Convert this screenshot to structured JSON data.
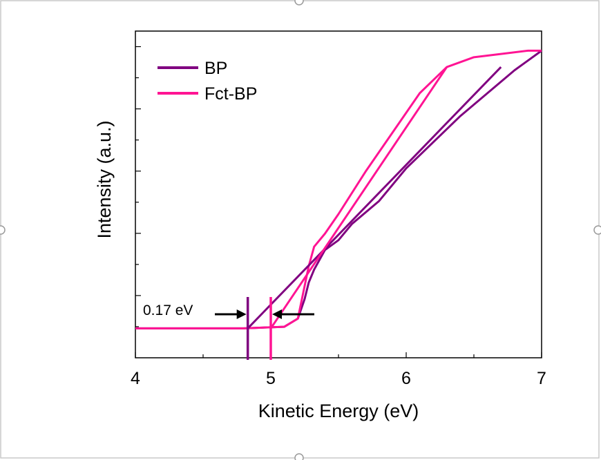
{
  "chart_data": {
    "type": "line",
    "xlabel": "Kinetic Energy (eV)",
    "ylabel": "Intensity (a.u.)",
    "xlim": [
      4,
      7
    ],
    "ylim": [
      0,
      1
    ],
    "x_ticks": [
      "4",
      "5",
      "6",
      "7"
    ],
    "grid": false,
    "legend_position": "top-left",
    "series": [
      {
        "name": "BP",
        "color": "#800080",
        "x": [
          4.0,
          4.8,
          5.1,
          5.2,
          5.25,
          5.28,
          5.32,
          5.4,
          5.5,
          5.6,
          5.8,
          6.0,
          6.2,
          6.4,
          6.6,
          6.8,
          7.0
        ],
        "y": [
          0.09,
          0.09,
          0.095,
          0.12,
          0.18,
          0.23,
          0.27,
          0.33,
          0.36,
          0.41,
          0.48,
          0.58,
          0.66,
          0.74,
          0.81,
          0.88,
          0.94
        ]
      },
      {
        "name": "Fct-BP",
        "color": "#FF1493",
        "x": [
          4.0,
          4.8,
          5.1,
          5.2,
          5.25,
          5.28,
          5.32,
          5.4,
          5.5,
          5.7,
          5.9,
          6.1,
          6.3,
          6.5,
          6.7,
          6.9,
          7.0
        ],
        "y": [
          0.09,
          0.09,
          0.095,
          0.12,
          0.22,
          0.28,
          0.34,
          0.38,
          0.44,
          0.57,
          0.69,
          0.81,
          0.89,
          0.92,
          0.93,
          0.94,
          0.94
        ]
      }
    ],
    "fit_lines": [
      {
        "series": "BP",
        "x": [
          4.83,
          6.7
        ],
        "y": [
          0.09,
          0.89
        ]
      },
      {
        "series": "Fct-BP",
        "x": [
          5.0,
          6.3
        ],
        "y": [
          0.09,
          0.89
        ]
      }
    ],
    "cutoffs": [
      {
        "series": "BP",
        "x": 4.83
      },
      {
        "series": "Fct-BP",
        "x": 5.0
      }
    ],
    "annotation": {
      "text": "0.17 eV"
    }
  }
}
